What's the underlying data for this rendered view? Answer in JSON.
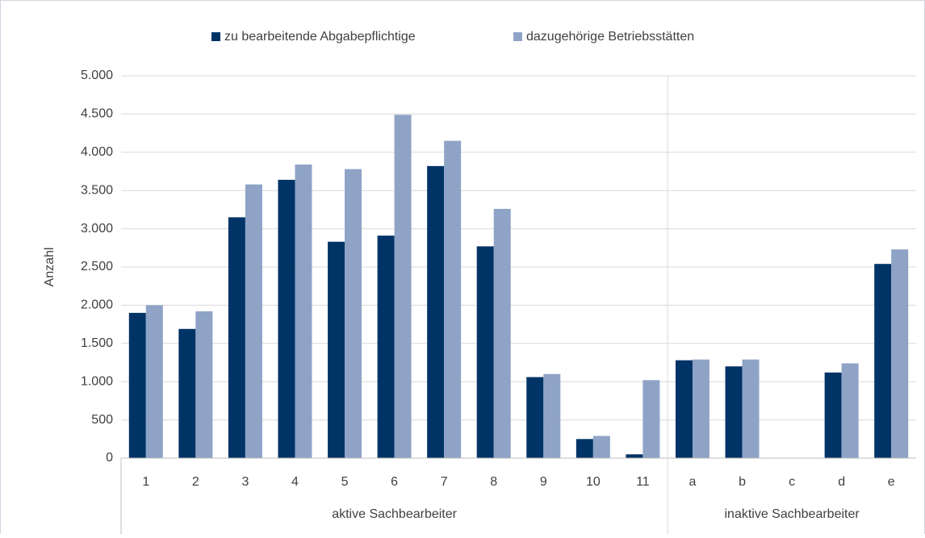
{
  "chart_data": {
    "type": "bar",
    "y_label": "Anzahl",
    "categories": [
      "1",
      "2",
      "3",
      "4",
      "5",
      "6",
      "7",
      "8",
      "9",
      "10",
      "11",
      "a",
      "b",
      "c",
      "d",
      "e"
    ],
    "groups": [
      {
        "label": "aktive Sachbearbeiter",
        "count": 11
      },
      {
        "label": "inaktive Sachbearbeiter",
        "count": 5
      }
    ],
    "series": [
      {
        "name": "zu bearbeitende Abgabepflichtige",
        "color": "#003366",
        "values": [
          1900,
          1690,
          3150,
          3640,
          2830,
          2910,
          3820,
          2770,
          1060,
          250,
          50,
          1280,
          1200,
          5,
          1120,
          2540
        ]
      },
      {
        "name": "dazugehörige Betriebsstätten",
        "color": "#8ea3c6",
        "values": [
          2000,
          1920,
          3580,
          3840,
          3780,
          4490,
          4150,
          3260,
          1100,
          290,
          1020,
          1290,
          1290,
          5,
          1240,
          2730
        ]
      }
    ],
    "ylim": [
      0,
      5000
    ],
    "yticks": [
      0,
      500,
      {
        "value": 1000,
        "label": "1.000"
      },
      {
        "value": 1500,
        "label": "1.500"
      },
      {
        "value": 2000,
        "label": "2.000"
      },
      {
        "value": 2500,
        "label": "2.500"
      },
      {
        "value": 3000,
        "label": "3.000"
      },
      {
        "value": 3500,
        "label": "3.500"
      },
      {
        "value": 4000,
        "label": "4.000"
      },
      {
        "value": 4500,
        "label": "4.500"
      },
      {
        "value": 5000,
        "label": "5.000"
      }
    ],
    "grid": true,
    "legend": "top"
  }
}
